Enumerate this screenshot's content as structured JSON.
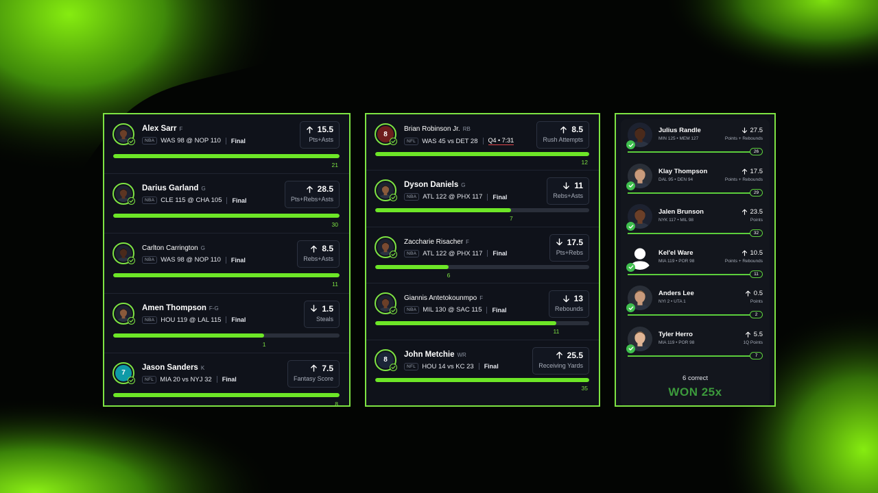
{
  "theme": {
    "accent": "#7ee443",
    "fill": "#6de627",
    "panel_bg": "#0f121a",
    "live_underline": "#e0474c"
  },
  "panel1": {
    "picks": [
      {
        "name": "Alex Sarr",
        "pos": "F",
        "league": "NBA",
        "game": "WAS 98 @ NOP 110",
        "status": "Final",
        "direction": "up",
        "line": "15.5",
        "stat": "Pts+Asts",
        "result": "21",
        "progress": 1.0,
        "avatar": "player-photo",
        "bold": true
      },
      {
        "name": "Darius Garland",
        "pos": "G",
        "league": "NBA",
        "game": "CLE 115 @ CHA 105",
        "status": "Final",
        "direction": "up",
        "line": "28.5",
        "stat": "Pts+Rebs+Asts",
        "result": "30",
        "progress": 1.0,
        "avatar": "player-photo",
        "bold": true
      },
      {
        "name": "Carlton Carrington",
        "pos": "G",
        "league": "NBA",
        "game": "WAS 98 @ NOP 110",
        "status": "Final",
        "direction": "up",
        "line": "8.5",
        "stat": "Rebs+Asts",
        "result": "11",
        "progress": 1.0,
        "avatar": "player-photo",
        "bold": false
      },
      {
        "name": "Amen Thompson",
        "pos": "F-G",
        "league": "NBA",
        "game": "HOU 119 @ LAL 115",
        "status": "Final",
        "direction": "down",
        "line": "1.5",
        "stat": "Steals",
        "result": "1",
        "progress": 0.667,
        "avatar": "player-photo",
        "bold": true
      },
      {
        "name": "Jason Sanders",
        "pos": "K",
        "league": "NFL",
        "game": "MIA 20 vs NYJ 32",
        "status": "Final",
        "direction": "up",
        "line": "7.5",
        "stat": "Fantasy Score",
        "result": "8",
        "progress": 1.0,
        "avatar": "jersey",
        "jersey_number": "7",
        "jersey_color": "#0e9aa7",
        "bold": true
      }
    ]
  },
  "panel2": {
    "picks": [
      {
        "name": "Brian Robinson Jr.",
        "pos": "RB",
        "league": "NFL",
        "game": "WAS 45 vs DET 28",
        "status": "Q4 • 7:31",
        "live": true,
        "direction": "up",
        "line": "8.5",
        "stat": "Rush Attempts",
        "result": "12",
        "progress": 1.0,
        "avatar": "jersey",
        "jersey_number": "8",
        "jersey_color": "#6e1d1d",
        "bold": false
      },
      {
        "name": "Dyson Daniels",
        "pos": "G",
        "league": "NBA",
        "game": "ATL 122 @ PHX 117",
        "status": "Final",
        "direction": "down",
        "line": "11",
        "stat": "Rebs+Asts",
        "result": "7",
        "progress": 0.636,
        "avatar": "player-photo",
        "bold": true
      },
      {
        "name": "Zaccharie Risacher",
        "pos": "F",
        "league": "NBA",
        "game": "ATL 122 @ PHX 117",
        "status": "Final",
        "direction": "down",
        "line": "17.5",
        "stat": "Pts+Rebs",
        "result": "6",
        "progress": 0.343,
        "avatar": "player-photo",
        "bold": false
      },
      {
        "name": "Giannis Antetokounmpo",
        "pos": "F",
        "league": "NBA",
        "game": "MIL 130 @ SAC 115",
        "status": "Final",
        "direction": "down",
        "line": "13",
        "stat": "Rebounds",
        "result": "11",
        "progress": 0.846,
        "avatar": "player-photo",
        "bold": false
      },
      {
        "name": "John Metchie",
        "pos": "WR",
        "league": "NFL",
        "game": "HOU 14 vs KC 23",
        "status": "Final",
        "direction": "up",
        "line": "25.5",
        "stat": "Receiving Yards",
        "result": "35",
        "progress": 1.0,
        "avatar": "jersey",
        "jersey_number": "8",
        "jersey_color": "#1b2538",
        "bold": true
      }
    ]
  },
  "panel3": {
    "picks": [
      {
        "name": "Julius Randle",
        "game": "MIN 125 • MEM 127",
        "direction": "down",
        "line": "27.5",
        "stat": "Points + Rebounds",
        "result": "26",
        "progress": 1.0,
        "avatar": "player-photo"
      },
      {
        "name": "Klay Thompson",
        "game": "DAL 95 • DEN 94",
        "direction": "up",
        "line": "17.5",
        "stat": "Points + Rebounds",
        "result": "29",
        "progress": 1.0,
        "avatar": "player-photo"
      },
      {
        "name": "Jalen Brunson",
        "game": "NYK 117 • MIL 98",
        "direction": "up",
        "line": "23.5",
        "stat": "Points",
        "result": "32",
        "progress": 1.0,
        "avatar": "player-photo"
      },
      {
        "name": "Kel'el Ware",
        "game": "MIA 119 • POR 98",
        "direction": "up",
        "line": "10.5",
        "stat": "Points + Rebounds",
        "result": "11",
        "progress": 1.0,
        "avatar": "placeholder-silhouette"
      },
      {
        "name": "Anders Lee",
        "game": "NYI 2 • UTA 1",
        "direction": "up",
        "line": "0.5",
        "stat": "Points",
        "result": "2",
        "progress": 1.0,
        "avatar": "player-photo"
      },
      {
        "name": "Tyler Herro",
        "game": "MIA 119 • POR 98",
        "direction": "up",
        "line": "5.5",
        "stat": "1Q Points",
        "result": "7",
        "progress": 1.0,
        "avatar": "player-photo"
      }
    ],
    "correct_text": "6 correct",
    "won_text": "WON 25x"
  }
}
